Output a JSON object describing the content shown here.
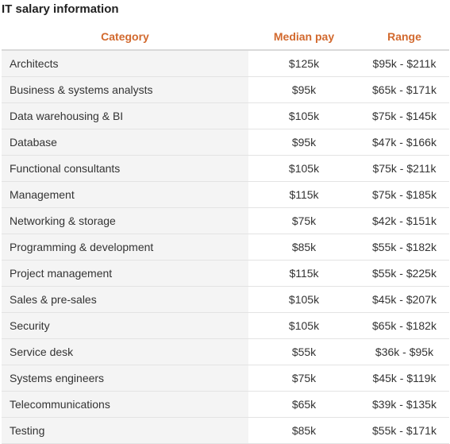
{
  "title": "IT salary information",
  "columns": {
    "category": "Category",
    "median": "Median pay",
    "range": "Range"
  },
  "rows": [
    {
      "category": "Architects",
      "median": "$125k",
      "range": "$95k - $211k"
    },
    {
      "category": "Business & systems analysts",
      "median": "$95k",
      "range": "$65k - $171k"
    },
    {
      "category": "Data warehousing & BI",
      "median": "$105k",
      "range": "$75k - $145k"
    },
    {
      "category": "Database",
      "median": "$95k",
      "range": "$47k - $166k"
    },
    {
      "category": "Functional consultants",
      "median": "$105k",
      "range": "$75k - $211k"
    },
    {
      "category": "Management",
      "median": "$115k",
      "range": "$75k - $185k"
    },
    {
      "category": "Networking & storage",
      "median": "$75k",
      "range": "$42k - $151k"
    },
    {
      "category": "Programming & development",
      "median": "$85k",
      "range": "$55k - $182k"
    },
    {
      "category": "Project management",
      "median": "$115k",
      "range": "$55k - $225k"
    },
    {
      "category": "Sales & pre-sales",
      "median": "$105k",
      "range": "$45k - $207k"
    },
    {
      "category": "Security",
      "median": "$105k",
      "range": "$65k - $182k"
    },
    {
      "category": "Service desk",
      "median": "$55k",
      "range": "$36k - $95k"
    },
    {
      "category": "Systems engineers",
      "median": "$75k",
      "range": "$45k - $119k"
    },
    {
      "category": "Telecommunications",
      "median": "$65k",
      "range": "$39k - $135k"
    },
    {
      "category": "Testing",
      "median": "$85k",
      "range": "$55k - $171k"
    }
  ],
  "colors": {
    "header_text": "#d2692e",
    "category_bg": "#f4f4f4",
    "body_text": "#333333"
  }
}
